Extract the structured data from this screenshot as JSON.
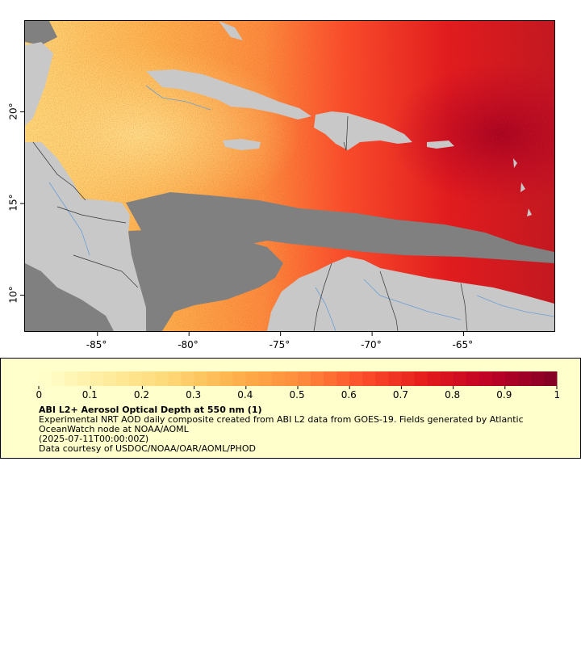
{
  "map": {
    "colors": {
      "land": "#c8c8c8",
      "no_data": "#808080",
      "border": "#333333",
      "river": "#6a9fd4",
      "frame": "#000000"
    },
    "colorscale": [
      "#ffffcc",
      "#ffeda0",
      "#fed976",
      "#feb24c",
      "#fd8d3c",
      "#fc4e2a",
      "#e31a1c",
      "#bd0026",
      "#800026"
    ],
    "y_axis": {
      "unit": "degrees latitude",
      "range": [
        8,
        25
      ],
      "ticks": [
        {
          "value": 20,
          "label": "20°"
        },
        {
          "value": 15,
          "label": "15°"
        },
        {
          "value": 10,
          "label": "10°"
        }
      ]
    },
    "x_axis": {
      "unit": "degrees longitude",
      "range": [
        -89,
        -60
      ],
      "ticks": [
        {
          "value": -85,
          "label": "-85°"
        },
        {
          "value": -80,
          "label": "-80°"
        },
        {
          "value": -75,
          "label": "-75°"
        },
        {
          "value": -70,
          "label": "-70°"
        },
        {
          "value": -65,
          "label": "-65°"
        }
      ]
    }
  },
  "legend": {
    "colorbar": {
      "min": 0,
      "max": 1,
      "ticks": [
        {
          "value": 0,
          "label": "0"
        },
        {
          "value": 0.1,
          "label": "0.1"
        },
        {
          "value": 0.2,
          "label": "0.2"
        },
        {
          "value": 0.3,
          "label": "0.3"
        },
        {
          "value": 0.4,
          "label": "0.4"
        },
        {
          "value": 0.5,
          "label": "0.5"
        },
        {
          "value": 0.6,
          "label": "0.6"
        },
        {
          "value": 0.7,
          "label": "0.7"
        },
        {
          "value": 0.8,
          "label": "0.8"
        },
        {
          "value": 0.9,
          "label": "0.9"
        },
        {
          "value": 1,
          "label": "1"
        }
      ]
    },
    "title": "ABI L2+ Aerosol Optical Depth at 550 nm (1)",
    "description": "Experimental NRT AOD daily composite created from ABI L2 data from GOES-19. Fields generated by Atlantic OceanWatch node at NOAA/AOML",
    "time": "(2025-07-11T00:00:00Z)",
    "credit": "Data courtesy of USDOC/NOAA/OAR/AOML/PHOD"
  }
}
